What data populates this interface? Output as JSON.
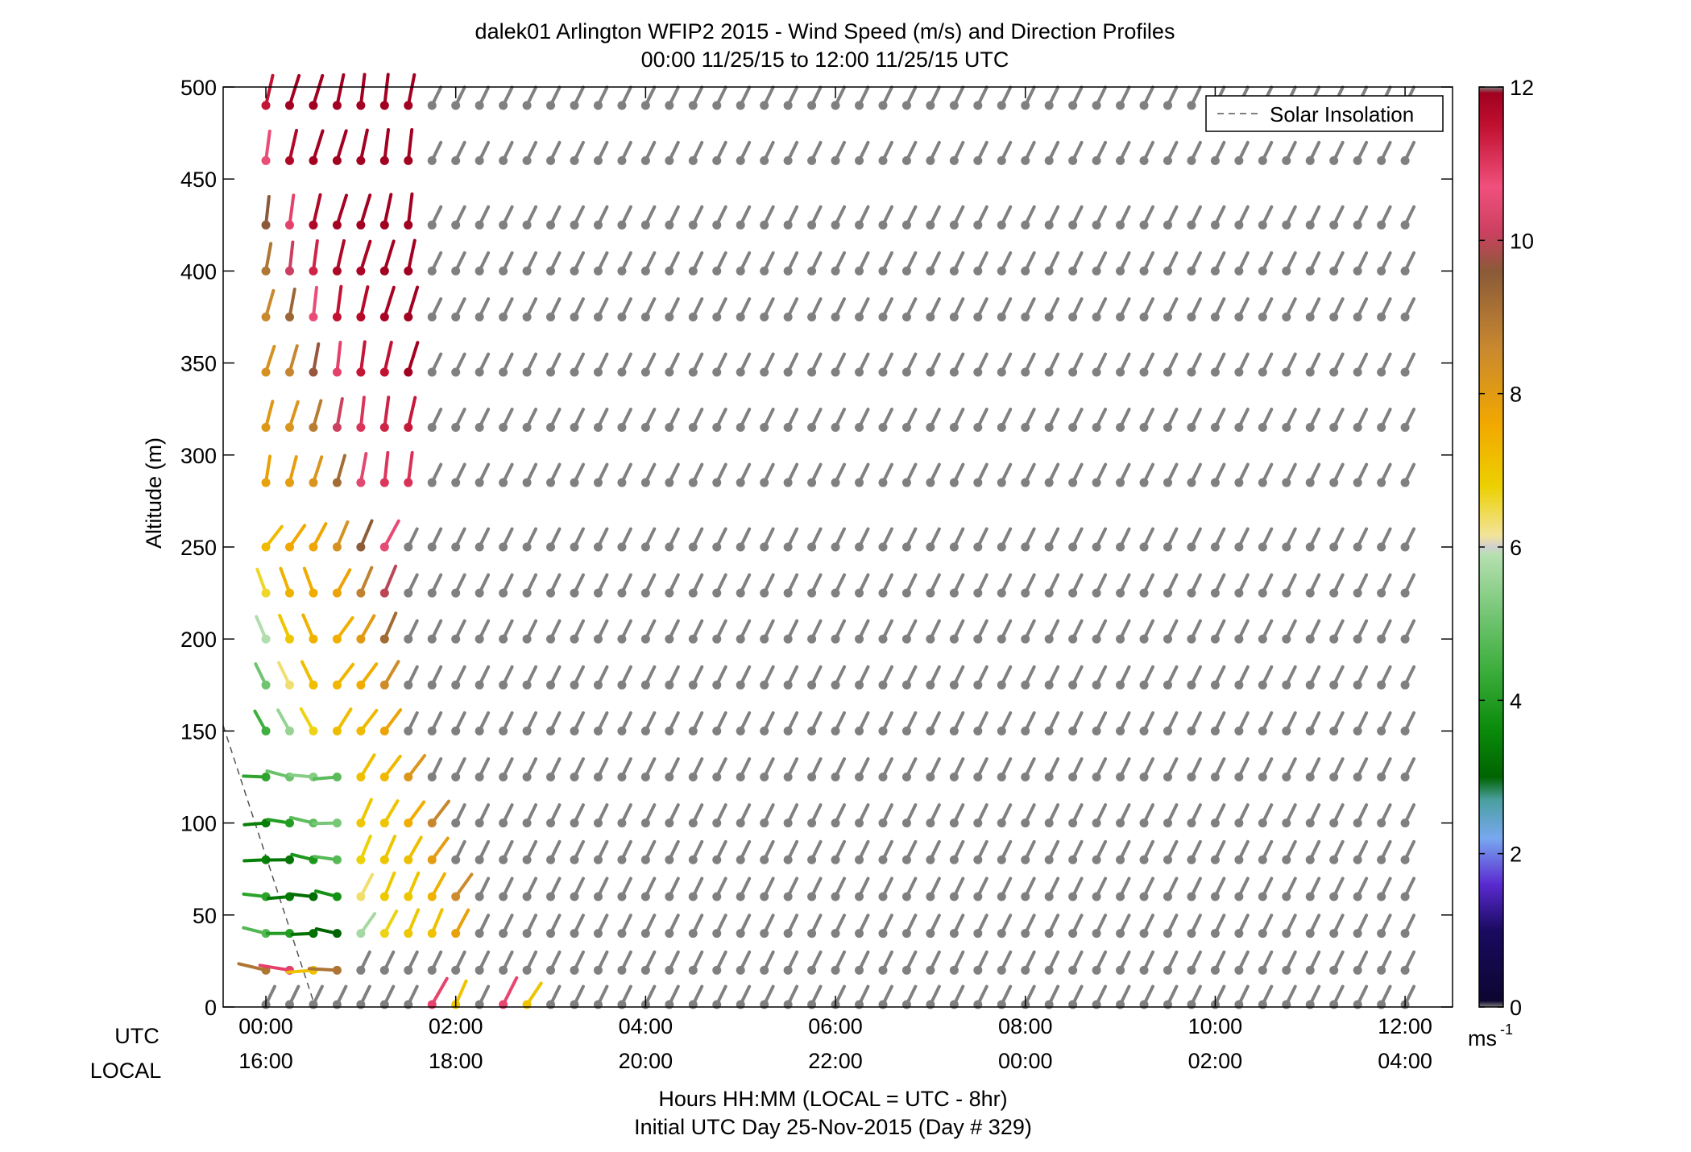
{
  "chart_data": {
    "type": "wind-barb-profile",
    "title": "dalek01 Arlington WFIP2 2015 - Wind Speed (m/s) and Direction Profiles",
    "subtitle": "00:00 11/25/15 to 12:00 11/25/15  UTC",
    "ylabel": "Altitude (m)",
    "xlabel": "Hours HH:MM  (LOCAL = UTC - 8hr)",
    "xlabel2": "Initial UTC Day 25-Nov-2015 (Day # 329)",
    "utc_row_label": "UTC",
    "local_row_label": "LOCAL",
    "ylim": [
      0,
      500
    ],
    "xlim_hours": [
      -0.45,
      12.5
    ],
    "yticks": [
      "0",
      "50",
      "100",
      "150",
      "200",
      "250",
      "300",
      "350",
      "400",
      "450",
      "500"
    ],
    "x_utc_ticks": [
      "00:00",
      "02:00",
      "04:00",
      "06:00",
      "08:00",
      "10:00",
      "12:00"
    ],
    "x_local_ticks": [
      "16:00",
      "18:00",
      "20:00",
      "22:00",
      "00:00",
      "02:00",
      "04:00"
    ],
    "x_tick_hours": [
      0,
      2,
      4,
      6,
      8,
      10,
      12
    ],
    "altitudes": [
      0,
      20,
      40,
      60,
      80,
      100,
      125,
      150,
      175,
      200,
      225,
      250,
      285,
      315,
      345,
      375,
      400,
      425,
      460,
      490
    ],
    "time_step_hours": 0.25,
    "time_count": 49,
    "missing_color": "#808080",
    "legend": {
      "entries": [
        "Solar Insolation"
      ],
      "placement": "top-right"
    },
    "colorbar": {
      "label": "ms",
      "label_exponent": "-1",
      "range": [
        0,
        12
      ],
      "ticks": [
        "0",
        "2",
        "4",
        "6",
        "8",
        "10",
        "12"
      ],
      "stops": [
        [
          0.0,
          "#808080"
        ],
        [
          0.08,
          "#0c0630"
        ],
        [
          1.0,
          "#1a0a60"
        ],
        [
          1.6,
          "#5a2ad0"
        ],
        [
          2.2,
          "#78a8f0"
        ],
        [
          2.7,
          "#4aa0a0"
        ],
        [
          3.0,
          "#006400"
        ],
        [
          3.6,
          "#0a8a0a"
        ],
        [
          4.4,
          "#3cae3c"
        ],
        [
          5.2,
          "#7ac87a"
        ],
        [
          5.9,
          "#b6e0b0"
        ],
        [
          6.0,
          "#d0d0d0"
        ],
        [
          6.15,
          "#f2e49a"
        ],
        [
          6.8,
          "#ecd000"
        ],
        [
          7.6,
          "#f2a800"
        ],
        [
          8.6,
          "#c88830"
        ],
        [
          9.6,
          "#8a5a38"
        ],
        [
          10.1,
          "#cc4060"
        ],
        [
          10.7,
          "#f0507c"
        ],
        [
          11.5,
          "#c01030"
        ],
        [
          11.92,
          "#a00020"
        ],
        [
          12.0,
          "#808080"
        ]
      ]
    },
    "solar_insolation": {
      "style": "dashed",
      "points": [
        [
          -0.45,
          153
        ],
        [
          0.52,
          0
        ]
      ]
    }
  }
}
